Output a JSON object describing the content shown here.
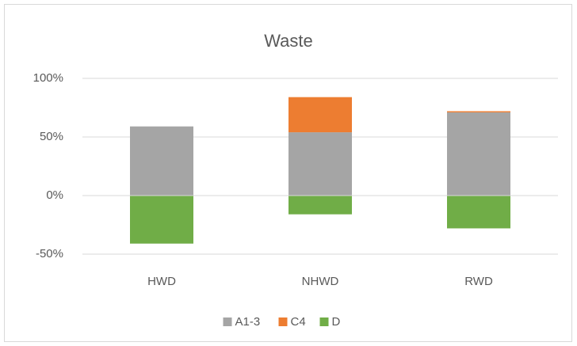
{
  "chart_data": {
    "type": "stacked_bar",
    "title": "Waste",
    "categories": [
      "HWD",
      "NHWD",
      "RWD"
    ],
    "series": [
      {
        "name": "A1-3",
        "color": "#a5a5a5",
        "values": [
          59,
          54,
          71
        ]
      },
      {
        "name": "C4",
        "color": "#ed7d31",
        "values": [
          0,
          30,
          1
        ]
      },
      {
        "name": "D",
        "color": "#70ad47",
        "values": [
          -41,
          -16,
          -28
        ]
      }
    ],
    "ylim": [
      -50,
      100
    ],
    "yticks": [
      {
        "value": -50,
        "label": "-50%"
      },
      {
        "value": 0,
        "label": "0%"
      },
      {
        "value": 50,
        "label": "50%"
      },
      {
        "value": 100,
        "label": "100%"
      }
    ],
    "grid": true,
    "legend": "bottom"
  }
}
